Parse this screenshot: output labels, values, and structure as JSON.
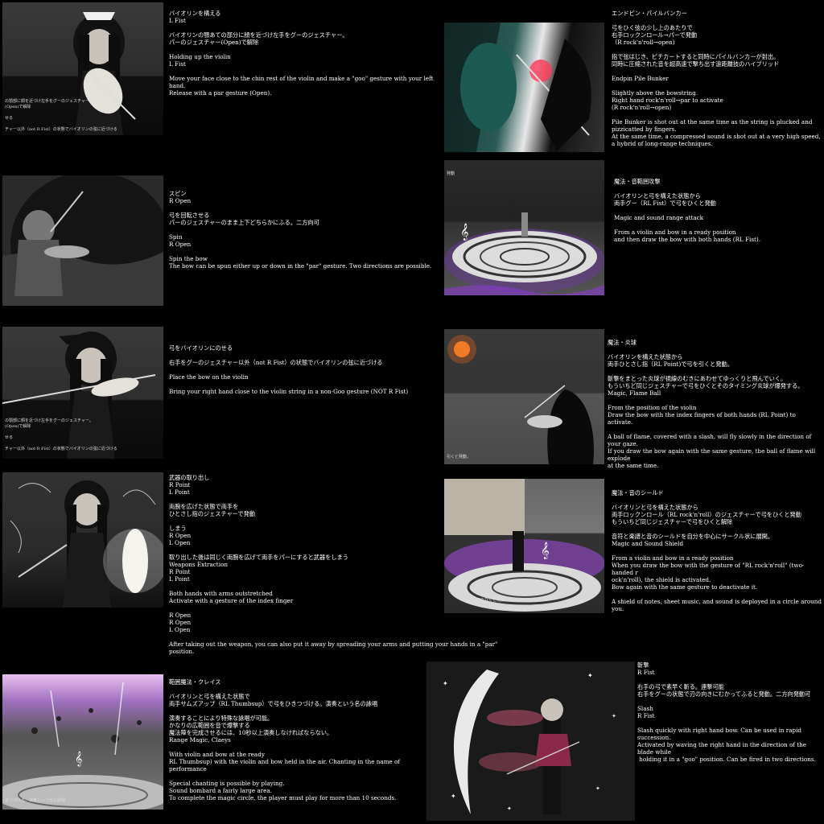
{
  "panels": [
    {
      "id": "hold",
      "text": "バイオリンを構える\nL Fist\n\nバイオリンの顎あての部分に顔を近づけ左手をグーのジェスチャー。\nパーのジェスチャー(Open)で解除\n\nHolding up the violin\nL Fist\n\nMove your face close to the chin rest of the violin and make a \"goo\" gesture with your left hand.\nRelease with a par gesture (Open).",
      "caption": "の顎部に顔を近づけ左手をグーのジェスチャー。\n(Open)で解除\n\nせる\n\nチャー以外（not R Fist）の状態でバイオリンの弦に近づける"
    },
    {
      "id": "pilebunker",
      "text": "エンドピン・パイルバンカー\n\n弓をひく弦の少し上のあたりで\n右手ロックンロール→パーで発動\n（R rock'n'roll→open)\n\n指で弦はじき、ピチカートすると同時にパイルバンカーが射出。\n同時に圧縮された音を超高速で撃ち出す遠距離技のハイブリッド\n\nEndpin Pile Bunker\n\nSlightly above the bowstring.\nRight hand rock'n'roll→par to activate\n(R rock'n'roll→open)\n\nPile Bunker is shot out at the same time as the string is plucked and\npizzicatted by fingers.\nAt the same time, a compressed sound is shot out at a very high speed,\na hybrid of long-range techniques."
    },
    {
      "id": "spin",
      "text": "スピン\nR Open\n\n弓を回転させる\nパーのジェスチャーのまま上下どちらかにふる。二方向可\n\nSpin\nR Open\n\nSpin the bow\nThe bow can be spun either up or down in the \"par\" gesture. Two directions are possible."
    },
    {
      "id": "rangeattack",
      "text": "魔法・音範囲攻撃\n\nバイオリンと弓を構えた状態から\n両手グー（RL Fist）で弓をひくと発動\n\nMagic and sound range attack\n\nFrom a violin and bow in a ready position\nand then draw the bow with both hands (RL Fist).",
      "caption": "発動"
    },
    {
      "id": "placebow",
      "text": "弓をバイオリンにのせる\n\n右手をグーのジェスチャー以外（not R Fist）の状態でバイオリンの弦に近づける\n\nPlace the bow on the violin\n\nBring your right hand close to the violin string in a non-Goo gesture (NOT R Fist)",
      "caption": "の顎部に顔を近づけ左手をグーのジェスチャー。\n(Open)で解除\n\nせる\n\nチャー以外（not R Fist）の状態でバイオリンの弦に近づける"
    },
    {
      "id": "flameball",
      "text": "魔法・炎球\n\nバイオリンを構えた状態から\n両手ひとさし指（RL Point)で弓を引くと発動。\n\n斬撃をまとった炎球が視線のむきにあわせてゆっくりと飛んでいく。\nもういちど同じジェスチャーで弓をひくとそのタイミング炎球が爆発する。\nMagic, Flame Ball\n\nFrom the position of the violin\nDraw the bow with the index fingers of both hands (RL Point) to activate.\n\nA ball of flame, covered with a slash, will fly slowly in the direction of your gaze.\nIf you draw the bow again with the same gesture, the ball of flame will explode\nat the same time.",
      "caption": "引くと発動。"
    },
    {
      "id": "weapons",
      "text": "武器の取り出し\nR Point\nL Point\n\n両腕を広げた状態で両手を\nひとさし指のジェスチャーで発動\n\nしまう\nR Open\nL Open\n\n取り出した後は同じく両腕を広げて両手をパーにすると武器をしまう\nWeapons Extraction\nR Point\nL Point\n\nBoth hands with arms outstretched\nActivate with a gesture of the index finger\n\nR Open\nR Open\nL Open\n\nAfter taking out the weapon, you can also put it away by spreading your arms and putting your hands in a \"par\" position."
    },
    {
      "id": "soundshield",
      "text": "魔法・音のシールド\n\nバイオリンと弓を構えた状態から\n両手ロックンロール（RL rock'n'roll）のジェスチャーで弓をひくと発動\nもういちど同じジェスチャーで弓をひくと解除\n\n音符と楽譜と音のシールドを自分を中心にサークル状に展開。\nMagic and Sound Shield\n\nFrom a violin and bow in a ready position\nWhen you draw the bow with the gesture of \"RL rock'n'roll\" (two-handed r\nock'n'roll), the shield is activated.\nBow again with the same gesture to deactivate it.\n\nA shield of notes, sheet music, and sound is deployed in a circle around you.",
      "caption": "弓をひくと発動"
    },
    {
      "id": "claeys",
      "text": "範囲魔法・クレイス\n\nバイオリンと弓を構えた状態で\n両手サムズアップ（RL Thumbsup）で弓をひきつづける。演奏という名の詠唱\n\n演奏することにより特殊な詠唱が可能。\nかなりの広範囲を音で爆撃する\n魔法陣を完成させるには、10秒以上演奏しなければならない。\nRange Magic, Claeys\n\nWith violin and bow at the ready\nRL Thumbsup) with the violin and bow held in the air. Chanting in the name of performance\n\nSpecial chanting is possible by playing.\nSound bombard a fairly large area.\nTo complete the magic circle, the player must play for more than 10 seconds.",
      "caption": "きつづける。演奏という名の詠唱"
    },
    {
      "id": "slash",
      "text": "斬撃\nR Fist\n\n右手の弓で素早く斬る。連撃可能\n右手をグーの状態で刃の向きにむかってふると発動。二方向発動可\n\nSlash\nR Fist\n\nSlash quickly with right hand bow. Can be used in rapid succession.\nActivated by waving the right hand in the direction of the blade while\n holding it in a \"goo\" position. Can be fired in two directions."
    }
  ],
  "icons": {
    "character": "character-silhouette",
    "magic_circle": "magic-circle",
    "flame": "flame-orb",
    "note": "music-note"
  }
}
